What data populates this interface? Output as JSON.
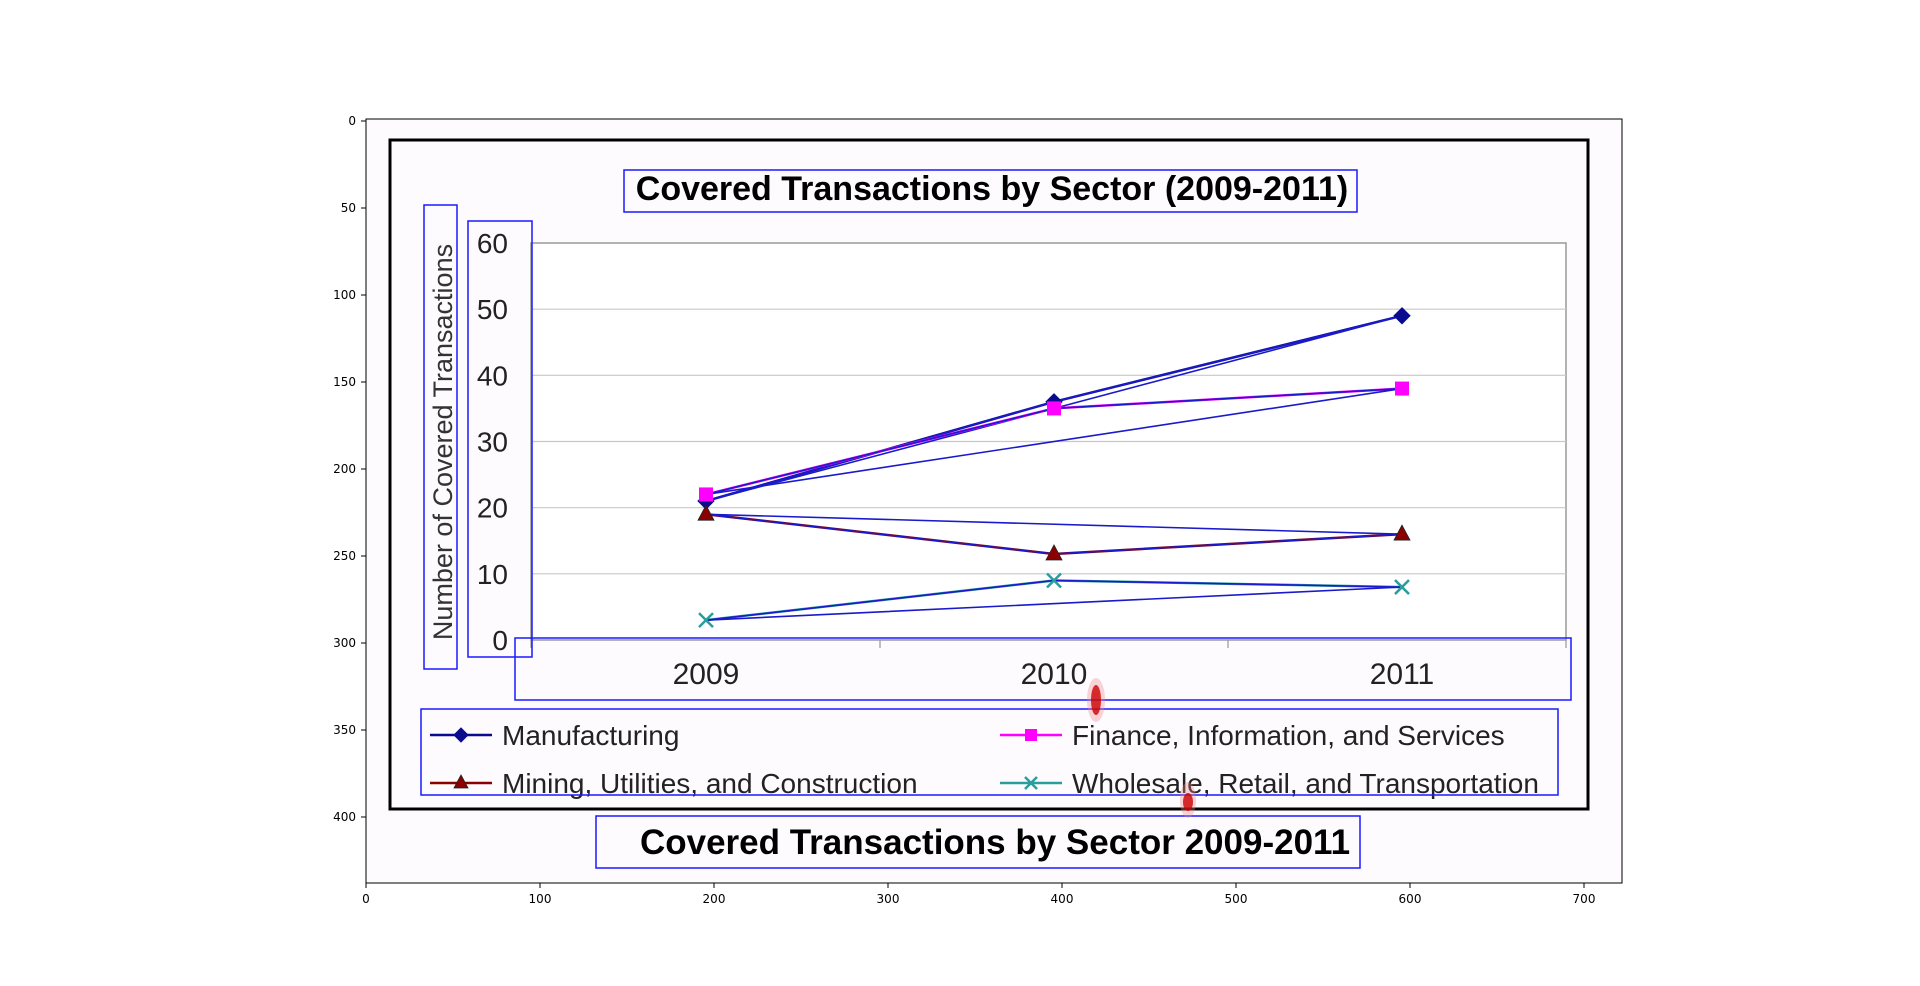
{
  "viewer": {
    "x_ticks": [
      "0",
      "100",
      "200",
      "300",
      "400",
      "500",
      "600",
      "700"
    ],
    "y_ticks": [
      "0",
      "50",
      "100",
      "150",
      "200",
      "250",
      "300",
      "350",
      "400"
    ]
  },
  "chart_data": {
    "type": "line",
    "title": "Covered Transactions by Sector (2009-2011)",
    "caption": "Covered Transactions by Sector 2009-2011",
    "ylabel": "Number of Covered Transactions",
    "xlabel": "",
    "categories": [
      "2009",
      "2010",
      "2011"
    ],
    "yticks": [
      "0",
      "10",
      "20",
      "30",
      "40",
      "50",
      "60"
    ],
    "ylim": [
      0,
      60
    ],
    "grid": true,
    "legend_position": "bottom",
    "series": [
      {
        "name": "Manufacturing",
        "values": [
          21,
          36,
          49
        ],
        "color": "#0b0b8f",
        "marker": "diamond"
      },
      {
        "name": "Finance, Information, and Services",
        "values": [
          22,
          35,
          38
        ],
        "color": "#ff00ff",
        "marker": "square"
      },
      {
        "name": "Mining, Utilities, and Construction",
        "values": [
          19,
          13,
          16
        ],
        "color": "#8b0000",
        "marker": "triangle"
      },
      {
        "name": "Wholesale, Retail, and Transportation",
        "values": [
          3,
          9,
          8
        ],
        "color": "#2a9d9d",
        "marker": "x"
      }
    ]
  }
}
